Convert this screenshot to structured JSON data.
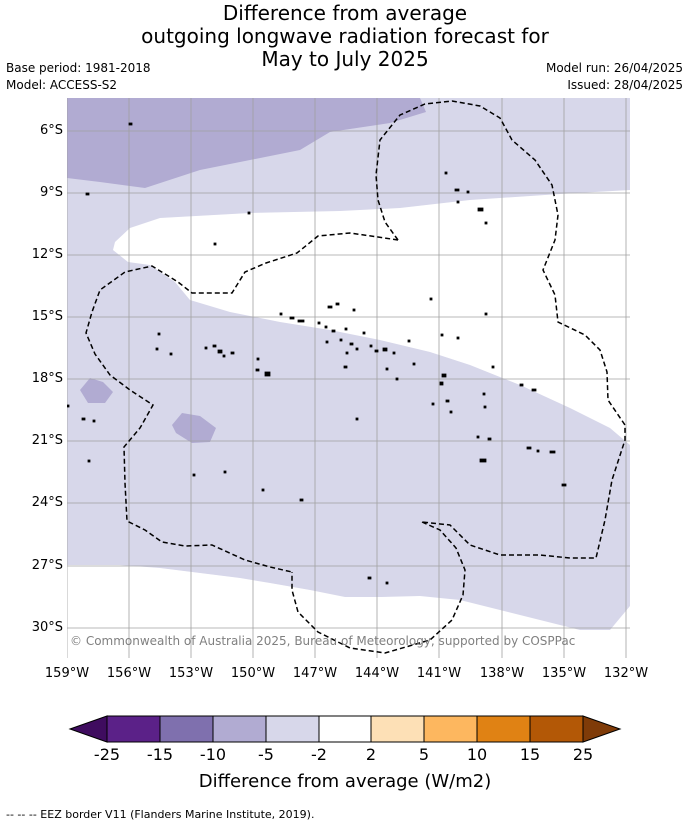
{
  "title": {
    "line1": "Difference from average",
    "line2": "outgoing longwave radiation forecast for",
    "line3": "May to July 2025"
  },
  "meta": {
    "base_period": "Base period: 1981-2018",
    "model": "Model: ACCESS-S2",
    "model_run": "Model run: 26/04/2025",
    "issued": "Issued: 28/04/2025"
  },
  "map": {
    "lat_labels": [
      "6°S",
      "9°S",
      "12°S",
      "15°S",
      "18°S",
      "21°S",
      "24°S",
      "27°S",
      "30°S"
    ],
    "lon_labels": [
      "159°W",
      "156°W",
      "153°W",
      "150°W",
      "147°W",
      "144°W",
      "141°W",
      "138°W",
      "135°W",
      "132°W"
    ],
    "copyright": "© Commonwealth of Australia 2025, Bureau of Meteorology, supported by COSPPac",
    "fill_colors": {
      "minus5_minus2": "#d7d7ea",
      "minus10_minus5": "#b1abd2",
      "land": "#000000"
    }
  },
  "colorbar": {
    "ticks": [
      "-25",
      "-15",
      "-10",
      "-5",
      "-2",
      "2",
      "5",
      "10",
      "15",
      "25"
    ],
    "colors": [
      "#3f0c5f",
      "#5b2188",
      "#7f70ae",
      "#b1abd2",
      "#d7d7ea",
      "#ffffff",
      "#fde0b6",
      "#fdb75f",
      "#e08214",
      "#b35806",
      "#7f3b08"
    ],
    "title": "Difference from average (W/m2)"
  },
  "footer": "--  --  -- EEZ border V11 (Flanders Marine Institute, 2019)."
}
